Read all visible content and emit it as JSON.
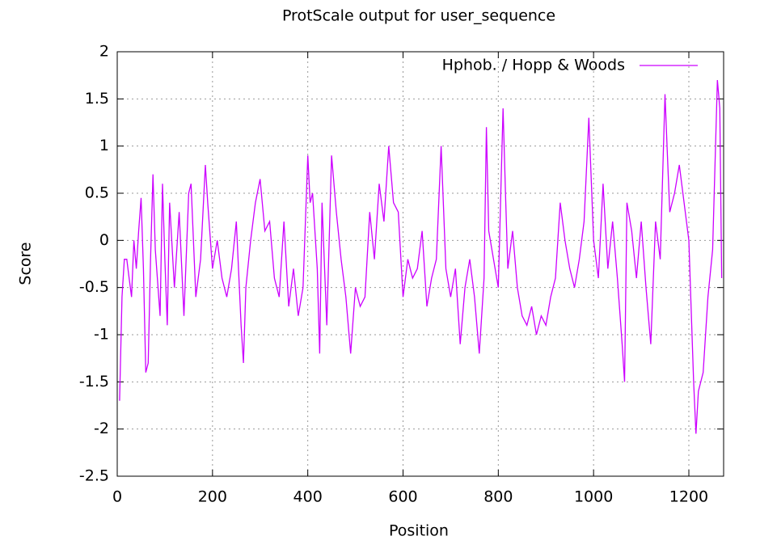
{
  "chart_data": {
    "type": "line",
    "title": "ProtScale output for user_sequence",
    "xlabel": "Position",
    "ylabel": "Score",
    "xlim": [
      0,
      1273
    ],
    "xticks": [
      0,
      200,
      400,
      600,
      800,
      1000,
      1200
    ],
    "ylim": [
      -2.5,
      2
    ],
    "yticks": [
      -2.5,
      -2,
      -1.5,
      -1,
      -0.5,
      0,
      0.5,
      1,
      1.5,
      2
    ],
    "grid": true,
    "legend": "top right",
    "x": [
      5,
      10,
      15,
      20,
      25,
      30,
      35,
      40,
      45,
      50,
      55,
      60,
      65,
      70,
      75,
      80,
      90,
      95,
      100,
      105,
      110,
      120,
      130,
      140,
      150,
      155,
      165,
      175,
      185,
      190,
      200,
      210,
      220,
      230,
      240,
      250,
      260,
      265,
      270,
      280,
      290,
      300,
      310,
      320,
      330,
      340,
      350,
      360,
      370,
      380,
      390,
      400,
      405,
      410,
      420,
      425,
      430,
      440,
      450,
      460,
      470,
      480,
      490,
      500,
      510,
      520,
      530,
      540,
      550,
      560,
      570,
      580,
      590,
      600,
      610,
      620,
      630,
      640,
      650,
      660,
      670,
      680,
      690,
      700,
      710,
      720,
      730,
      740,
      750,
      760,
      770,
      775,
      780,
      790,
      800,
      810,
      815,
      820,
      830,
      840,
      850,
      860,
      870,
      880,
      890,
      900,
      910,
      920,
      930,
      940,
      950,
      960,
      970,
      980,
      990,
      1000,
      1010,
      1020,
      1030,
      1040,
      1050,
      1060,
      1065,
      1070,
      1080,
      1090,
      1100,
      1110,
      1120,
      1130,
      1140,
      1150,
      1155,
      1160,
      1170,
      1180,
      1190,
      1200,
      1210,
      1215,
      1220,
      1230,
      1240,
      1250,
      1260,
      1265,
      1269
    ],
    "series": [
      {
        "name": "Hphob. / Hopp & Woods",
        "color": "#cc00ff",
        "values": [
          -1.7,
          -0.6,
          -0.2,
          -0.2,
          -0.4,
          -0.6,
          0,
          -0.3,
          0.1,
          0.45,
          -0.3,
          -1.4,
          -1.3,
          -0.2,
          0.7,
          -0.1,
          -0.8,
          0.6,
          -0.2,
          -0.9,
          0.4,
          -0.5,
          0.3,
          -0.8,
          0.5,
          0.6,
          -0.6,
          -0.2,
          0.8,
          0.4,
          -0.3,
          0,
          -0.4,
          -0.6,
          -0.3,
          0.2,
          -0.9,
          -1.3,
          -0.5,
          0,
          0.4,
          0.65,
          0.1,
          0.2,
          -0.4,
          -0.6,
          0.2,
          -0.7,
          -0.3,
          -0.8,
          -0.5,
          0.9,
          0.4,
          0.5,
          -0.3,
          -1.2,
          0.4,
          -0.9,
          0.9,
          0.3,
          -0.2,
          -0.6,
          -1.2,
          -0.5,
          -0.7,
          -0.6,
          0.3,
          -0.2,
          0.6,
          0.2,
          1.0,
          0.4,
          0.3,
          -0.6,
          -0.2,
          -0.4,
          -0.3,
          0.1,
          -0.7,
          -0.4,
          -0.2,
          1.0,
          -0.3,
          -0.6,
          -0.3,
          -1.1,
          -0.5,
          -0.2,
          -0.6,
          -1.2,
          -0.4,
          1.2,
          0.1,
          -0.2,
          -0.5,
          1.4,
          0.5,
          -0.3,
          0.1,
          -0.5,
          -0.8,
          -0.9,
          -0.7,
          -1.0,
          -0.8,
          -0.9,
          -0.6,
          -0.4,
          0.4,
          0.0,
          -0.3,
          -0.5,
          -0.2,
          0.2,
          1.3,
          0.0,
          -0.4,
          0.6,
          -0.3,
          0.2,
          -0.4,
          -1.1,
          -1.5,
          0.4,
          0.1,
          -0.4,
          0.2,
          -0.5,
          -1.1,
          0.2,
          -0.2,
          1.55,
          0.9,
          0.3,
          0.5,
          0.8,
          0.4,
          0.0,
          -1.5,
          -2.05,
          -1.6,
          -1.4,
          -0.6,
          -0.1,
          1.7,
          1.4,
          -0.4
        ]
      }
    ]
  }
}
